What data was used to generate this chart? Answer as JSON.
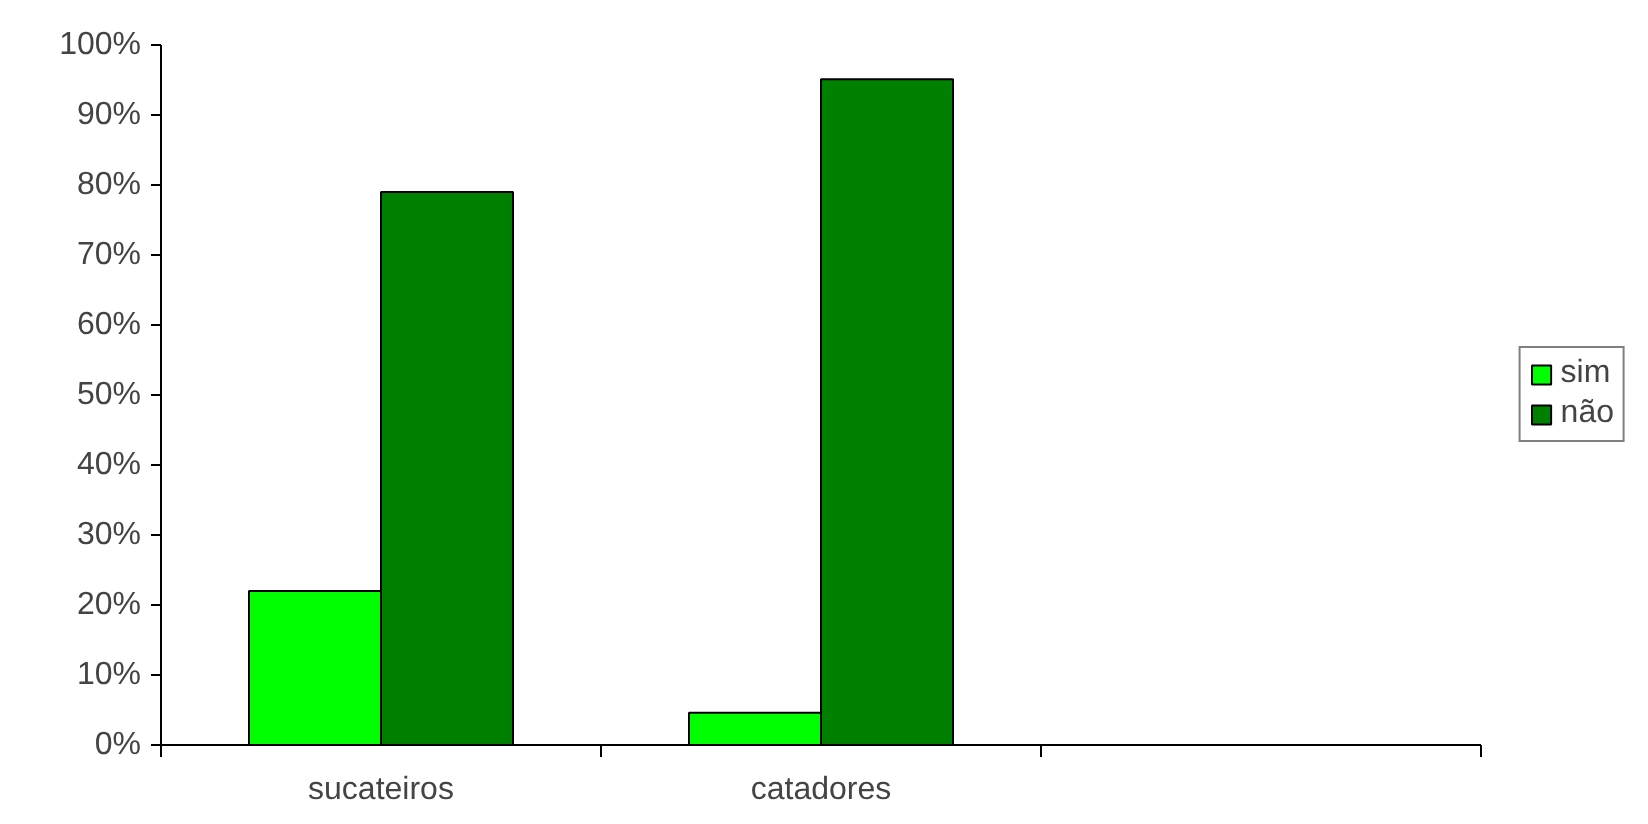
{
  "chart_data": {
    "type": "bar",
    "categories": [
      "sucateiros",
      "catadores",
      null
    ],
    "series": [
      {
        "name": "sim",
        "color": "#00ff00",
        "values": [
          22,
          4.6,
          null
        ]
      },
      {
        "name": "não",
        "color": "#008000",
        "values": [
          79,
          95.1,
          null
        ]
      }
    ],
    "ylim": [
      0,
      100
    ],
    "yticks": [
      {
        "value": 0,
        "label": "0%"
      },
      {
        "value": 10,
        "label": "10%"
      },
      {
        "value": 20,
        "label": "20%"
      },
      {
        "value": 30,
        "label": "30%"
      },
      {
        "value": 40,
        "label": "40%"
      },
      {
        "value": 50,
        "label": "50%"
      },
      {
        "value": 60,
        "label": "60%"
      },
      {
        "value": 70,
        "label": "70%"
      },
      {
        "value": 80,
        "label": "80%"
      },
      {
        "value": 90,
        "label": "90%"
      },
      {
        "value": 100,
        "label": "100%"
      }
    ],
    "legend": "right",
    "grid": false
  }
}
